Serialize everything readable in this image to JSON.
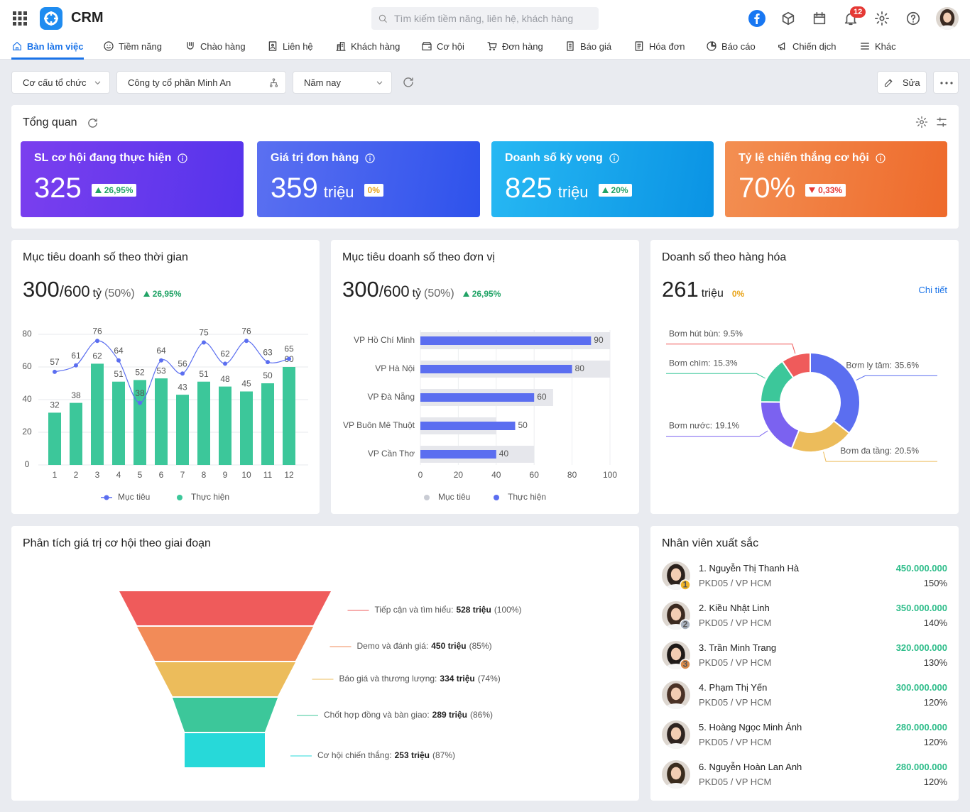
{
  "header": {
    "app_name": "CRM",
    "search_placeholder": "Tìm kiếm tiềm năng, liên hệ, khách hàng",
    "notification_count": "12"
  },
  "nav": {
    "items": [
      "Bàn làm việc",
      "Tiềm năng",
      "Chào hàng",
      "Liên hệ",
      "Khách hàng",
      "Cơ hội",
      "Đơn hàng",
      "Báo giá",
      "Hóa đơn",
      "Báo cáo",
      "Chiến dịch",
      "Khác"
    ],
    "active": 0
  },
  "filters": {
    "items": [
      "Cơ cấu tổ chức",
      "Công ty cổ phần Minh An",
      "Năm nay"
    ],
    "edit": "Sửa"
  },
  "overview": {
    "title": "Tổng quan",
    "cards": [
      {
        "label": "SL cơ hội đang thực hiện",
        "value": "325",
        "change": "26,95%",
        "trend": "up",
        "badge_color": "#21a366",
        "gradient": [
          "#7b3fee",
          "#5534ec"
        ]
      },
      {
        "label": "Giá trị đơn hàng",
        "value": "359",
        "unit": "triệu",
        "change": "0%",
        "trend": "flat",
        "badge_color": "#e8a317",
        "gradient": [
          "#5b70f1",
          "#2e52ec"
        ]
      },
      {
        "label": "Doanh số kỳ vọng",
        "value": "825",
        "unit": "triệu",
        "change": "20%",
        "trend": "up",
        "badge_color": "#21a366",
        "gradient": [
          "#27b8f3",
          "#0a93e4"
        ]
      },
      {
        "label": "Tỷ lệ chiến thắng cơ hội",
        "value": "70%",
        "change": "0,33%",
        "trend": "down",
        "badge_color": "#e53935",
        "gradient": [
          "#f38f52",
          "#ee6a2b"
        ]
      }
    ]
  },
  "widgets": [
    {
      "title": "Mục tiêu doanh số theo thời gian",
      "summary": {
        "actual": "300",
        "target": "/600",
        "unit": "tỷ",
        "ratio": "(50%)",
        "change": "26,95%",
        "trend": "up",
        "change_color": "#21a366"
      },
      "chart": {
        "type": "bar_line",
        "categories": [
          "1",
          "2",
          "3",
          "4",
          "5",
          "6",
          "7",
          "8",
          "9",
          "10",
          "11",
          "12"
        ],
        "series": [
          {
            "name": "Mục tiêu",
            "kind": "line",
            "color": "#5b6ef0",
            "values": [
              57,
              61,
              76,
              64,
              38,
              64,
              56,
              75,
              62,
              76,
              63,
              65
            ]
          },
          {
            "name": "Thực hiện",
            "kind": "bar",
            "color": "#3cc79a",
            "values": [
              32,
              38,
              62,
              51,
              52,
              53,
              43,
              51,
              48,
              45,
              50,
              60
            ]
          }
        ],
        "ylim": [
          0,
          80
        ],
        "yticks": [
          0,
          20,
          40,
          60,
          80
        ],
        "grid": true
      }
    },
    {
      "title": "Mục tiêu doanh số theo đơn vị",
      "summary": {
        "actual": "300",
        "target": "/600",
        "unit": "tỷ",
        "ratio": "(50%)",
        "change": "26,95%",
        "trend": "up",
        "change_color": "#21a366"
      },
      "chart": {
        "type": "hbar",
        "categories": [
          "VP Hồ Chí Minh",
          "VP Hà Nội",
          "VP Đà Nẵng",
          "VP  Buôn Mê Thuột",
          "VP Cần Thơ"
        ],
        "series": [
          {
            "name": "Mục tiêu",
            "color": "#e6e7ec",
            "legend_color": "#c9ccd4",
            "values": [
              100,
              100,
              70,
              40,
              60
            ]
          },
          {
            "name": "Thực hiện",
            "color": "#5b6ef0",
            "values": [
              90,
              80,
              60,
              50,
              40
            ]
          }
        ],
        "xlim": [
          0,
          100
        ],
        "xticks": [
          0,
          20,
          40,
          60,
          80,
          100
        ],
        "grid": true
      }
    },
    {
      "title": "Doanh số theo hàng hóa",
      "summary": {
        "actual": "261",
        "unit": "triệu",
        "change": "0%",
        "trend": "flat",
        "change_color": "#e8a317"
      },
      "link": "Chi tiết",
      "chart": {
        "type": "donut",
        "categories": [
          "Bơm ly tâm:",
          "Bơm đa tầng:",
          "Bơm nước:",
          "Bơm chìm:",
          "Bơm hút bùn:"
        ],
        "values": [
          35.6,
          20.5,
          19.1,
          15.3,
          9.5
        ],
        "value_labels": [
          "35.6%",
          "20.5%",
          "19.1%",
          "15.3%",
          "9.5%"
        ],
        "colors": [
          "#5b6ef0",
          "#ecbc5b",
          "#7b62f0",
          "#3cc79a",
          "#ef5b5b"
        ]
      }
    }
  ],
  "funnel": {
    "title": "Phân tích giá trị cơ hội theo giai đoạn",
    "stages": [
      {
        "name": "Tiếp cận và tìm hiểu:",
        "value": "528 triệu",
        "percent": "(100%)",
        "color": "#ef5b5b"
      },
      {
        "name": "Demo và đánh giá:",
        "value": "450 triệu",
        "percent": "(85%)",
        "color": "#f28b58"
      },
      {
        "name": "Báo giá và thương lượng:",
        "value": "334 triệu",
        "percent": "(74%)",
        "color": "#ecbc5b"
      },
      {
        "name": "Chốt hợp đồng và bàn giao:",
        "value": "289 triệu",
        "percent": "(86%)",
        "color": "#3cc79a"
      },
      {
        "name": "Cơ hội chiến thắng:",
        "value": "253 triệu",
        "percent": "(87%)",
        "color": "#27d9d9"
      }
    ]
  },
  "employees": {
    "title": "Nhân viên xuất sắc",
    "items": [
      {
        "name": "1. Nguyễn Thị Thanh Hà",
        "dept": "PKD05 / VP HCM",
        "amount": "450.000.000",
        "percent": "150%",
        "rank": "1"
      },
      {
        "name": "2. Kiều Nhật Linh",
        "dept": "PKD05 / VP HCM",
        "amount": "350.000.000",
        "percent": "140%",
        "rank": "2"
      },
      {
        "name": "3. Trần Minh Trang",
        "dept": "PKD05 / VP HCM",
        "amount": "320.000.000",
        "percent": "130%",
        "rank": "3"
      },
      {
        "name": "4. Phạm Thị Yến",
        "dept": "PKD05 / VP HCM",
        "amount": "300.000.000",
        "percent": "120%"
      },
      {
        "name": "5. Hoàng Ngọc Minh Ánh",
        "dept": "PKD05 / VP HCM",
        "amount": "280.000.000",
        "percent": "120%"
      },
      {
        "name": "6. Nguyễn Hoàn Lan Anh",
        "dept": "PKD05 / VP HCM",
        "amount": "280.000.000",
        "percent": "120%"
      }
    ]
  }
}
